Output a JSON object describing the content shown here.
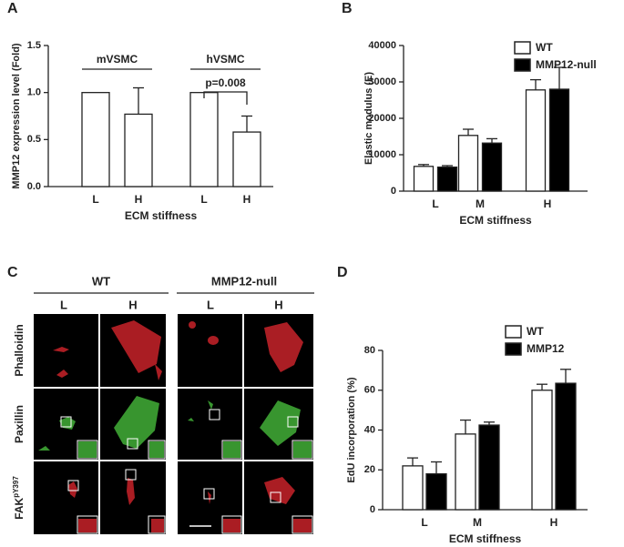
{
  "chart_data": [
    {
      "type": "bar",
      "panel_label": "A",
      "ylabel": "MMP12 expression level (Fold)",
      "xlabel": "ECM stiffness",
      "categories": [
        "L",
        "H",
        "L",
        "H"
      ],
      "group_labels": [
        "mVSMC",
        "hVSMC"
      ],
      "annotations": [
        "p=0.008"
      ],
      "series": [
        {
          "color": "#ffffff",
          "values": [
            1.0,
            0.77,
            1.0,
            0.58
          ],
          "errors": [
            0,
            0.28,
            0,
            0.17
          ]
        }
      ],
      "ylim": [
        0,
        1.5
      ],
      "yticks": [
        {
          "value": 0,
          "label": "0.0"
        },
        {
          "value": 0.5,
          "label": "0.5"
        },
        {
          "value": 1,
          "label": "1.0"
        },
        {
          "value": 1.5,
          "label": "1.5"
        }
      ]
    },
    {
      "type": "bar",
      "panel_label": "B",
      "ylabel": "Elastic modulus (E)",
      "xlabel": "ECM stiffness",
      "categories": [
        "L",
        "M",
        "H"
      ],
      "legend": "upper right",
      "series": [
        {
          "name": "WT",
          "color": "#ffffff",
          "values": [
            6800,
            15300,
            27800
          ],
          "errors": [
            500,
            1700,
            2800
          ]
        },
        {
          "name": "MMP12-null",
          "color": "#000000",
          "values": [
            6600,
            13200,
            28000
          ],
          "errors": [
            400,
            1200,
            6000
          ]
        }
      ],
      "ylim": [
        0,
        40000
      ],
      "yticks": [
        0,
        10000,
        20000,
        30000,
        40000
      ]
    },
    {
      "type": "bar",
      "panel_label": "D",
      "ylabel": "EdU incorporation (%)",
      "xlabel": "ECM stiffness",
      "categories": [
        "L",
        "M",
        "H"
      ],
      "legend": "upper right",
      "series": [
        {
          "name": "WT",
          "color": "#ffffff",
          "values": [
            22,
            38,
            60
          ],
          "errors": [
            4,
            7,
            3
          ]
        },
        {
          "name": "MMP12",
          "color": "#000000",
          "values": [
            18,
            42.5,
            63.5
          ],
          "errors": [
            6,
            1.5,
            7
          ]
        }
      ],
      "ylim": [
        0,
        80
      ],
      "yticks": [
        0,
        20,
        40,
        60,
        80
      ]
    }
  ],
  "image_panel": {
    "panel_label": "C",
    "groups": [
      {
        "name": "WT",
        "columns": [
          "L",
          "H"
        ]
      },
      {
        "name": "MMP12-null",
        "columns": [
          "L",
          "H"
        ]
      }
    ],
    "rows": [
      {
        "label": "Phalloidin"
      },
      {
        "label": "Paxillin"
      },
      {
        "label": "FAK",
        "superscript": "pY397"
      }
    ]
  }
}
